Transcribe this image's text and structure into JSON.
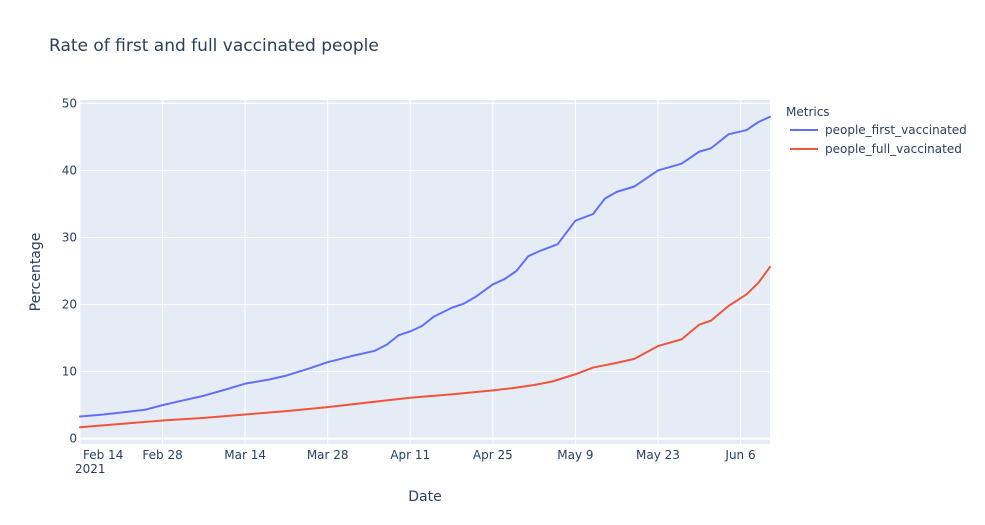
{
  "chart_data": {
    "type": "line",
    "title": "Rate of first and full vaccinated people",
    "xlabel": "Date",
    "ylabel": "Percentage",
    "x_range": [
      "2021-02-14",
      "2021-06-11"
    ],
    "ylim": [
      -0.8,
      50.5
    ],
    "y_ticks": [
      0,
      10,
      20,
      30,
      40,
      50
    ],
    "x_ticks": [
      {
        "date": "2021-02-14",
        "label": "Feb 14",
        "sub": "2021"
      },
      {
        "date": "2021-02-28",
        "label": "Feb 28",
        "sub": ""
      },
      {
        "date": "2021-03-14",
        "label": "Mar 14",
        "sub": ""
      },
      {
        "date": "2021-03-28",
        "label": "Mar 28",
        "sub": ""
      },
      {
        "date": "2021-04-11",
        "label": "Apr 11",
        "sub": ""
      },
      {
        "date": "2021-04-25",
        "label": "Apr 25",
        "sub": ""
      },
      {
        "date": "2021-05-09",
        "label": "May 9",
        "sub": ""
      },
      {
        "date": "2021-05-23",
        "label": "May 23",
        "sub": ""
      },
      {
        "date": "2021-06-06",
        "label": "Jun 6",
        "sub": ""
      }
    ],
    "grid": true,
    "legend": {
      "title": "Metrics",
      "position": "right"
    },
    "series": [
      {
        "name": "people_first_vaccinated",
        "color": "#636efa",
        "points": [
          [
            "2021-02-14",
            3.3
          ],
          [
            "2021-02-18",
            3.6
          ],
          [
            "2021-02-21",
            3.9
          ],
          [
            "2021-02-25",
            4.3
          ],
          [
            "2021-02-28",
            5.0
          ],
          [
            "2021-03-03",
            5.6
          ],
          [
            "2021-03-07",
            6.4
          ],
          [
            "2021-03-11",
            7.4
          ],
          [
            "2021-03-14",
            8.2
          ],
          [
            "2021-03-18",
            8.8
          ],
          [
            "2021-03-21",
            9.4
          ],
          [
            "2021-03-25",
            10.5
          ],
          [
            "2021-03-28",
            11.4
          ],
          [
            "2021-04-01",
            12.3
          ],
          [
            "2021-04-05",
            13.1
          ],
          [
            "2021-04-07",
            14.0
          ],
          [
            "2021-04-09",
            15.4
          ],
          [
            "2021-04-11",
            16.0
          ],
          [
            "2021-04-13",
            16.8
          ],
          [
            "2021-04-15",
            18.2
          ],
          [
            "2021-04-18",
            19.5
          ],
          [
            "2021-04-20",
            20.1
          ],
          [
            "2021-04-22",
            21.1
          ],
          [
            "2021-04-25",
            23.0
          ],
          [
            "2021-04-27",
            23.8
          ],
          [
            "2021-04-29",
            25.0
          ],
          [
            "2021-05-01",
            27.2
          ],
          [
            "2021-05-03",
            28.0
          ],
          [
            "2021-05-06",
            29.0
          ],
          [
            "2021-05-09",
            32.5
          ],
          [
            "2021-05-12",
            33.5
          ],
          [
            "2021-05-14",
            35.8
          ],
          [
            "2021-05-16",
            36.8
          ],
          [
            "2021-05-19",
            37.6
          ],
          [
            "2021-05-23",
            40.0
          ],
          [
            "2021-05-27",
            41.0
          ],
          [
            "2021-05-30",
            42.8
          ],
          [
            "2021-06-01",
            43.3
          ],
          [
            "2021-06-04",
            45.4
          ],
          [
            "2021-06-07",
            46.0
          ],
          [
            "2021-06-09",
            47.2
          ],
          [
            "2021-06-11",
            48.0
          ]
        ]
      },
      {
        "name": "people_full_vaccinated",
        "color": "#ef553b",
        "points": [
          [
            "2021-02-14",
            1.7
          ],
          [
            "2021-02-21",
            2.2
          ],
          [
            "2021-02-28",
            2.7
          ],
          [
            "2021-03-07",
            3.1
          ],
          [
            "2021-03-14",
            3.6
          ],
          [
            "2021-03-21",
            4.1
          ],
          [
            "2021-03-28",
            4.7
          ],
          [
            "2021-04-04",
            5.4
          ],
          [
            "2021-04-11",
            6.1
          ],
          [
            "2021-04-18",
            6.6
          ],
          [
            "2021-04-25",
            7.2
          ],
          [
            "2021-04-29",
            7.6
          ],
          [
            "2021-05-02",
            8.0
          ],
          [
            "2021-05-05",
            8.5
          ],
          [
            "2021-05-09",
            9.6
          ],
          [
            "2021-05-12",
            10.6
          ],
          [
            "2021-05-16",
            11.3
          ],
          [
            "2021-05-19",
            11.9
          ],
          [
            "2021-05-23",
            13.8
          ],
          [
            "2021-05-27",
            14.8
          ],
          [
            "2021-05-30",
            17.0
          ],
          [
            "2021-06-01",
            17.6
          ],
          [
            "2021-06-04",
            19.8
          ],
          [
            "2021-06-07",
            21.5
          ],
          [
            "2021-06-09",
            23.2
          ],
          [
            "2021-06-11",
            25.6
          ]
        ]
      }
    ]
  }
}
